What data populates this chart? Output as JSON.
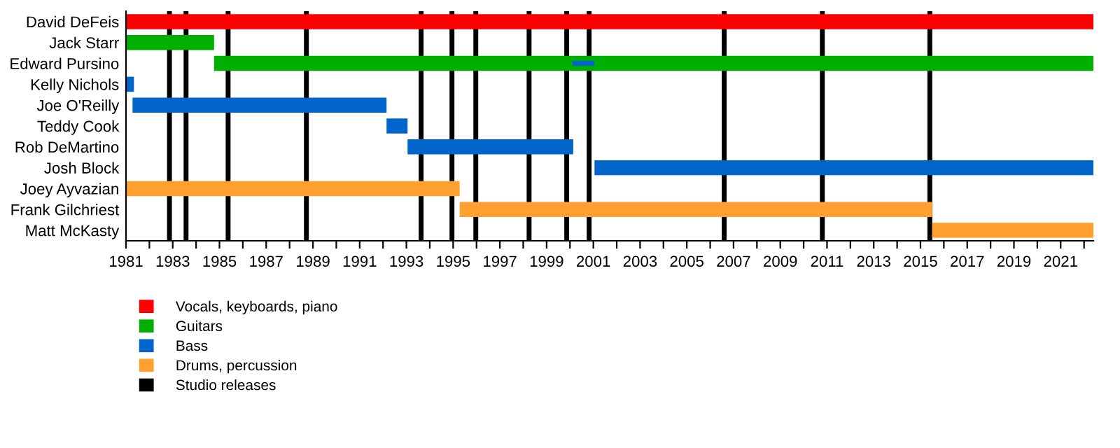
{
  "chart_data": {
    "type": "bar",
    "orientation": "horizontal",
    "categories": [
      "David DeFeis",
      "Jack Starr",
      "Edward Pursino",
      "Kelly Nichols",
      "Joe O'Reilly",
      "Teddy Cook",
      "Rob DeMartino",
      "Josh Block",
      "Joey Ayvazian",
      "Frank Gilchriest",
      "Matt McKasty"
    ],
    "series": [
      {
        "name": "Vocals, keyboards, piano",
        "color": "#ff0000",
        "base": [
          1981,
          null,
          null,
          null,
          null,
          null,
          null,
          null,
          null,
          null,
          null
        ],
        "values": [
          41.4,
          null,
          null,
          null,
          null,
          null,
          null,
          null,
          null,
          null,
          null
        ]
      },
      {
        "name": "Guitars",
        "color": "#00b000",
        "base": [
          null,
          1981,
          1984.77,
          null,
          null,
          null,
          null,
          null,
          null,
          null,
          null
        ],
        "values": [
          null,
          3.77,
          37.63,
          null,
          null,
          null,
          null,
          null,
          null,
          null,
          null
        ]
      },
      {
        "name": "Bass",
        "color": "#0066cc",
        "base": [
          null,
          null,
          2000.1,
          1981,
          1981.28,
          1992.15,
          1993.05,
          2001.05,
          null,
          null,
          null
        ],
        "values": [
          null,
          null,
          0.95,
          0.34,
          10.87,
          0.9,
          7.09,
          21.35,
          null,
          null,
          null
        ]
      },
      {
        "name": "Drums, percussion",
        "color": "#ffa030",
        "base": [
          null,
          null,
          null,
          null,
          null,
          null,
          null,
          null,
          1981,
          1995.28,
          2015.5
        ],
        "values": [
          null,
          null,
          null,
          null,
          null,
          null,
          null,
          null,
          14.28,
          20.22,
          6.9
        ]
      }
    ],
    "ref_lines": [
      {
        "axis": "x",
        "value": 1982.86,
        "label": "Studio releases",
        "color": "#000000"
      },
      {
        "axis": "x",
        "value": 1983.57,
        "color": "#000000"
      },
      {
        "axis": "x",
        "value": 1985.37,
        "color": "#000000"
      },
      {
        "axis": "x",
        "value": 1988.72,
        "color": "#000000"
      },
      {
        "axis": "x",
        "value": 1993.63,
        "color": "#000000"
      },
      {
        "axis": "x",
        "value": 1994.95,
        "color": "#000000"
      },
      {
        "axis": "x",
        "value": 1995.97,
        "color": "#000000"
      },
      {
        "axis": "x",
        "value": 1998.25,
        "color": "#000000"
      },
      {
        "axis": "x",
        "value": 1999.86,
        "color": "#000000"
      },
      {
        "axis": "x",
        "value": 2000.82,
        "color": "#000000"
      },
      {
        "axis": "x",
        "value": 2006.6,
        "color": "#000000"
      },
      {
        "axis": "x",
        "value": 2010.8,
        "color": "#000000"
      },
      {
        "axis": "x",
        "value": 2015.4,
        "color": "#000000"
      }
    ],
    "xlim": [
      1981,
      2022.4
    ],
    "xticks": [
      1981,
      {
        "value": 1982,
        "label": null
      },
      1983,
      {
        "value": 1984,
        "label": null
      },
      1985,
      {
        "value": 1986,
        "label": null
      },
      1987,
      {
        "value": 1988,
        "label": null
      },
      1989,
      {
        "value": 1990,
        "label": null
      },
      1991,
      {
        "value": 1992,
        "label": null
      },
      1993,
      {
        "value": 1994,
        "label": null
      },
      1995,
      {
        "value": 1996,
        "label": null
      },
      1997,
      {
        "value": 1998,
        "label": null
      },
      1999,
      {
        "value": 2000,
        "label": null
      },
      2001,
      {
        "value": 2002,
        "label": null
      },
      2003,
      {
        "value": 2004,
        "label": null
      },
      2005,
      {
        "value": 2006,
        "label": null
      },
      2007,
      {
        "value": 2008,
        "label": null
      },
      2009,
      {
        "value": 2010,
        "label": null
      },
      2011,
      {
        "value": 2012,
        "label": null
      },
      2013,
      {
        "value": 2014,
        "label": null
      },
      2015,
      {
        "value": 2016,
        "label": null
      },
      2017,
      {
        "value": 2018,
        "label": null
      },
      2019,
      {
        "value": 2020,
        "label": null
      },
      2021,
      {
        "value": 2022,
        "label": null
      }
    ],
    "grid": false,
    "legend": "bottom left"
  }
}
